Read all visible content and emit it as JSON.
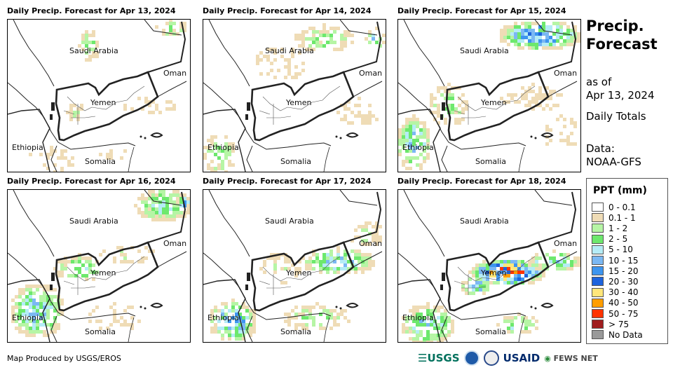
{
  "panels": [
    {
      "title": "Daily Precip. Forecast for Apr 13, 2024"
    },
    {
      "title": "Daily Precip. Forecast for Apr 14, 2024"
    },
    {
      "title": "Daily Precip. Forecast for Apr 15, 2024"
    },
    {
      "title": "Daily Precip. Forecast for Apr 16, 2024"
    },
    {
      "title": "Daily Precip. Forecast for Apr 17, 2024"
    },
    {
      "title": "Daily Precip. Forecast for Apr 18, 2024"
    }
  ],
  "map_labels": {
    "saudi": "Saudi Arabia",
    "oman": "Oman",
    "yemen": "Yemen",
    "ethiopia": "Ethiopia",
    "somalia": "Somalia"
  },
  "side": {
    "title1": "Precip.",
    "title2": "Forecast",
    "asof": "as of",
    "date": "Apr 13, 2024",
    "totals": "Daily Totals",
    "data_label": "Data:",
    "data_source": "NOAA-GFS"
  },
  "legend": {
    "title": "PPT (mm)",
    "items": [
      {
        "label": "0 - 0.1",
        "color": "#ffffff"
      },
      {
        "label": "0.1 - 1",
        "color": "#efdcb6"
      },
      {
        "label": "1 - 2",
        "color": "#b6f5a5"
      },
      {
        "label": "2 - 5",
        "color": "#6de86d"
      },
      {
        "label": "5 - 10",
        "color": "#b5ecf6"
      },
      {
        "label": "10 - 15",
        "color": "#7bb8f3"
      },
      {
        "label": "15 - 20",
        "color": "#3d95ef"
      },
      {
        "label": "20 - 30",
        "color": "#1d63dd"
      },
      {
        "label": "30 - 40",
        "color": "#ffe67a"
      },
      {
        "label": "40 - 50",
        "color": "#ff9d00"
      },
      {
        "label": "50 - 75",
        "color": "#ff3300"
      },
      {
        "label": "> 75",
        "color": "#a01d1f"
      },
      {
        "label": "No Data",
        "color": "#999999"
      }
    ]
  },
  "footer": {
    "credit": "Map Produced by USGS/EROS",
    "logos": {
      "usgs": "USGS",
      "usaid": "USAID",
      "fews": "FEWS NET"
    }
  }
}
